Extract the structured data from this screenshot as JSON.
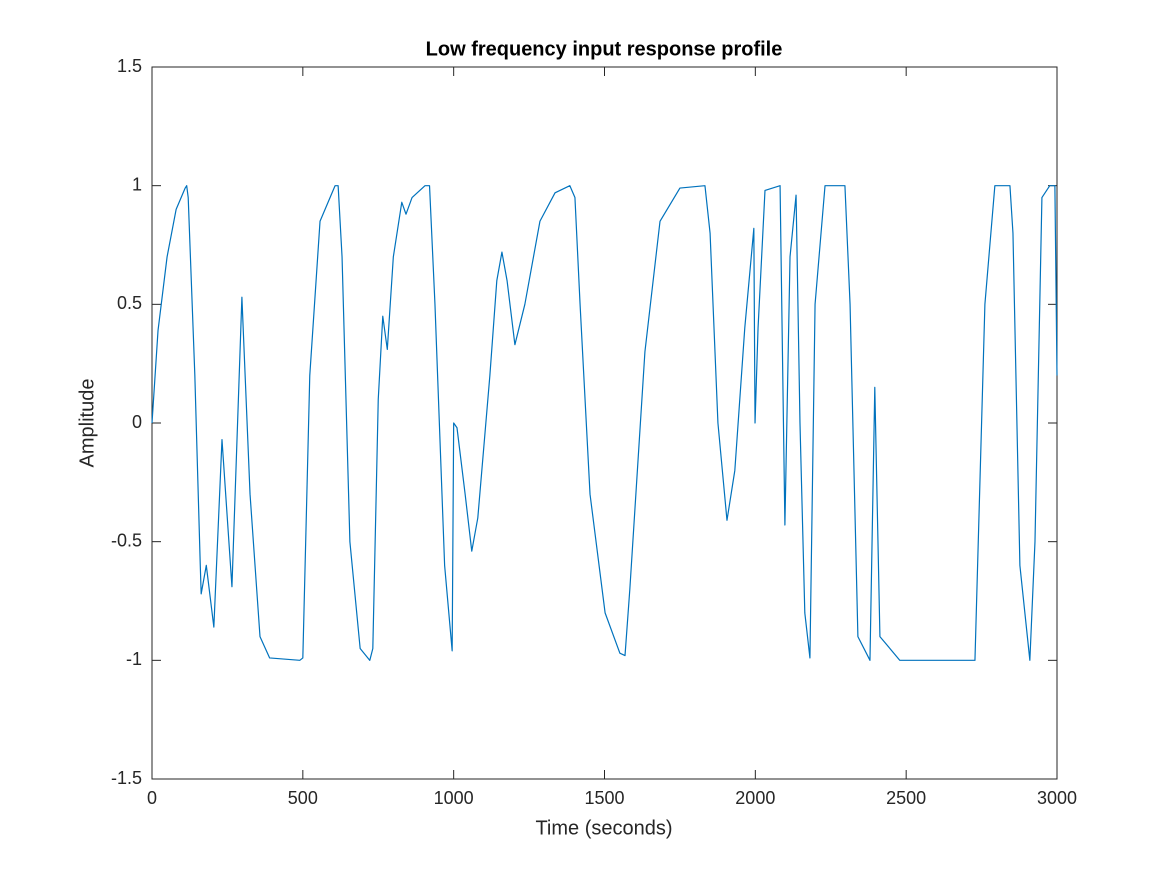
{
  "chart_data": {
    "type": "line",
    "title": "Low frequency input response profile",
    "x_label": "Time (seconds)",
    "y_label": "Amplitude",
    "color": "#0072bd",
    "xlim": [
      0,
      3000
    ],
    "ylim": [
      -1.5,
      1.5
    ],
    "xticks": [
      0,
      500,
      1000,
      1500,
      2000,
      2500,
      3000
    ],
    "yticks": [
      -1.5,
      -1,
      -0.5,
      0,
      0.5,
      1,
      1.5
    ],
    "grid": false,
    "x": [
      0,
      20,
      50,
      80,
      110,
      115,
      120,
      142,
      160,
      163,
      180,
      205,
      232,
      265,
      298,
      325,
      358,
      390,
      490,
      500,
      523,
      557,
      607,
      617,
      630,
      656,
      690,
      722,
      732,
      750,
      765,
      780,
      800,
      828,
      842,
      862,
      905,
      920,
      938,
      970,
      995,
      1000,
      1011,
      1038,
      1060,
      1080,
      1120,
      1143,
      1160,
      1177,
      1203,
      1236,
      1286,
      1336,
      1385,
      1402,
      1419,
      1452,
      1502,
      1551,
      1568,
      1584,
      1634,
      1684,
      1750,
      1833,
      1850,
      1876,
      1906,
      1932,
      1965,
      1995,
      1999,
      2009,
      2032,
      2082,
      2098,
      2115,
      2135,
      2148,
      2164,
      2181,
      2198,
      2231,
      2297,
      2314,
      2340,
      2380,
      2396,
      2413,
      2479,
      2728,
      2761,
      2794,
      2844,
      2854,
      2877,
      2910,
      2927,
      2950,
      2976,
      2993,
      3000
    ],
    "values": [
      0,
      0.39,
      0.7,
      0.9,
      0.99,
      1,
      0.95,
      0.2,
      -0.6,
      -0.72,
      -0.6,
      -0.86,
      -0.07,
      -0.69,
      0.53,
      -0.3,
      -0.9,
      -0.99,
      -1,
      -0.99,
      0.2,
      0.85,
      1,
      1,
      0.7,
      -0.5,
      -0.95,
      -1,
      -0.95,
      0.1,
      0.45,
      0.31,
      0.7,
      0.93,
      0.88,
      0.95,
      1,
      1,
      0.5,
      -0.6,
      -0.96,
      0,
      -0.02,
      -0.3,
      -0.54,
      -0.4,
      0.2,
      0.6,
      0.72,
      0.6,
      0.33,
      0.5,
      0.85,
      0.97,
      1,
      0.95,
      0.5,
      -0.3,
      -0.8,
      -0.97,
      -0.98,
      -0.7,
      0.3,
      0.85,
      0.99,
      1,
      0.8,
      0,
      -0.41,
      -0.2,
      0.4,
      0.82,
      0,
      0.4,
      0.98,
      1,
      -0.43,
      0.7,
      0.96,
      0,
      -0.8,
      -0.99,
      0.5,
      1,
      1,
      0.5,
      -0.9,
      -1,
      0.15,
      -0.9,
      -1,
      -1,
      0.5,
      1,
      1,
      0.8,
      -0.6,
      -1,
      -0.5,
      0.95,
      1,
      1,
      0.2
    ]
  }
}
